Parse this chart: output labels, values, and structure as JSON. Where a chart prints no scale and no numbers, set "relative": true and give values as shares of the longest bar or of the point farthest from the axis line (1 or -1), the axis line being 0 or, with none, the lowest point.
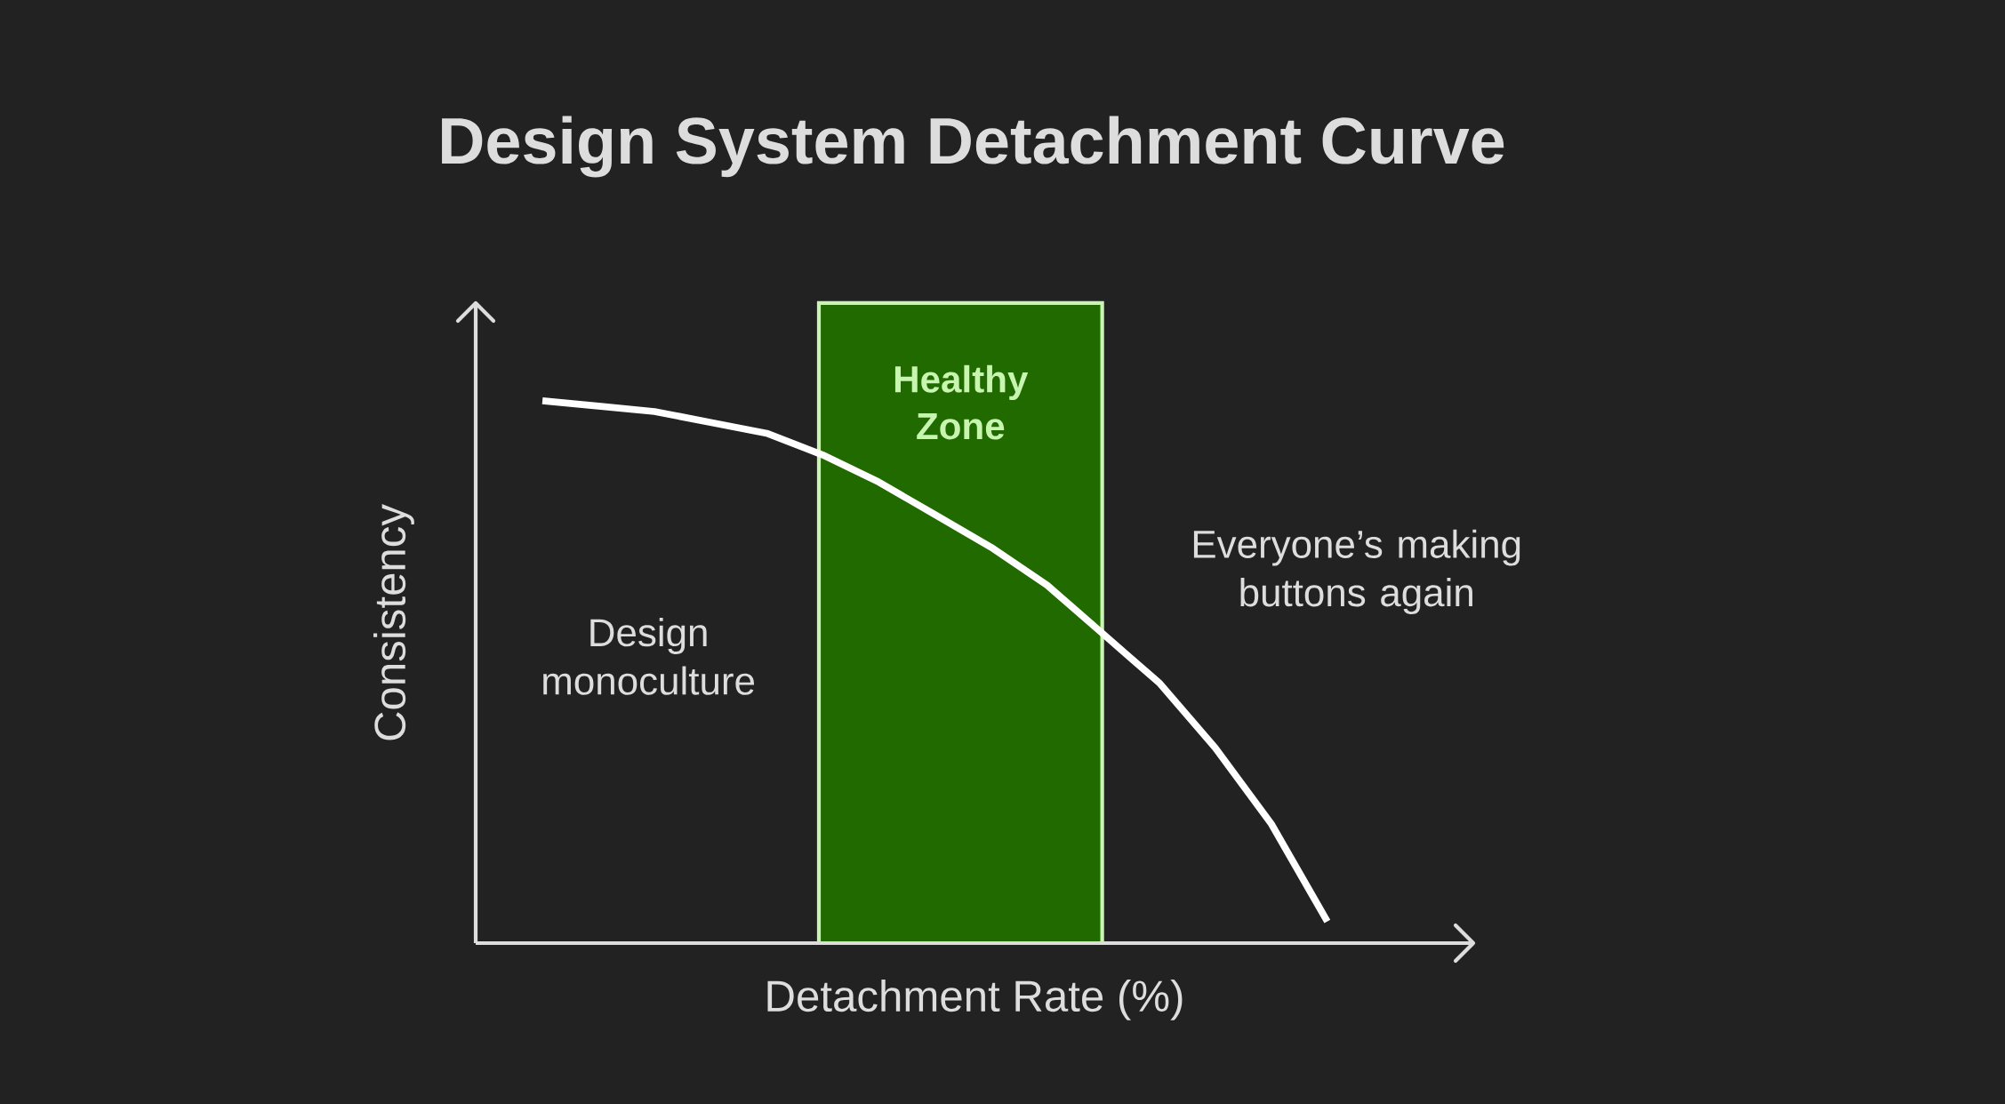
{
  "chart_data": {
    "type": "line",
    "title": "Design System Detachment Curve",
    "xlabel": "Detachment Rate (%)",
    "ylabel": "Consistency",
    "relative": true,
    "categories": [
      null,
      null,
      null,
      null,
      null,
      null,
      null,
      null,
      null,
      null,
      null,
      null,
      null,
      null,
      null
    ],
    "values": [
      1.0,
      0.99,
      0.98,
      0.96,
      0.94,
      0.9,
      0.85,
      0.79,
      0.73,
      0.66,
      0.57,
      0.48,
      0.36,
      0.22,
      0.04
    ],
    "color": "#ffffff",
    "annotations": [
      "Healthy Zone",
      "Design monoculture",
      "Everyone’s making buttons again"
    ]
  }
}
